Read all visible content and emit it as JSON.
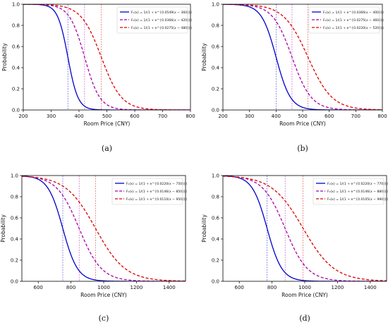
{
  "chart_data": [
    {
      "type": "line",
      "panel_label": "(a)",
      "xlabel": "Room Price (CNY)",
      "ylabel": "Probability",
      "xlim": [
        200,
        800
      ],
      "ylim": [
        0,
        1.0
      ],
      "xticks": [
        200,
        300,
        400,
        500,
        600,
        700,
        800
      ],
      "yticks": [
        0.0,
        0.2,
        0.4,
        0.6,
        0.8,
        1.0
      ],
      "grid": false,
      "legend_position": "top-right",
      "series": [
        {
          "name": "F₁(x) = 1/(1 + e^{0.0549(x − 360)})",
          "k": 0.0549,
          "x0": 360,
          "color": "#0000cc",
          "dash": "solid"
        },
        {
          "name": "F₂(x) = 1/(1 + e^{0.0366(x − 420)})",
          "k": 0.0366,
          "x0": 420,
          "color": "#aa00aa",
          "dash": "dashed"
        },
        {
          "name": "F₃(x) = 1/(1 + e^{0.0275(x − 480)})",
          "k": 0.0275,
          "x0": 480,
          "color": "#dd0000",
          "dash": "dashed"
        }
      ]
    },
    {
      "type": "line",
      "panel_label": "(b)",
      "xlabel": "Room Price (CNY)",
      "ylabel": "Probability",
      "xlim": [
        200,
        800
      ],
      "ylim": [
        0,
        1.0
      ],
      "xticks": [
        200,
        300,
        400,
        500,
        600,
        700,
        800
      ],
      "yticks": [
        0.0,
        0.2,
        0.4,
        0.6,
        0.8,
        1.0
      ],
      "grid": false,
      "legend_position": "top-right",
      "series": [
        {
          "name": "F₁(x) = 1/(1 + e^{0.0366(x − 400)})",
          "k": 0.0366,
          "x0": 400,
          "color": "#0000cc",
          "dash": "solid"
        },
        {
          "name": "F₂(x) = 1/(1 + e^{0.0275(x − 460)})",
          "k": 0.0275,
          "x0": 460,
          "color": "#aa00aa",
          "dash": "dashed"
        },
        {
          "name": "F₃(x) = 1/(1 + e^{0.0220(x − 520)})",
          "k": 0.022,
          "x0": 520,
          "color": "#dd0000",
          "dash": "dashed"
        }
      ]
    },
    {
      "type": "line",
      "panel_label": "(c)",
      "xlabel": "Room Price (CNY)",
      "ylabel": "Probability",
      "xlim": [
        500,
        1500
      ],
      "ylim": [
        0,
        1.0
      ],
      "xticks": [
        600,
        800,
        1000,
        1200,
        1400
      ],
      "yticks": [
        0.0,
        0.2,
        0.4,
        0.6,
        0.8,
        1.0
      ],
      "grid": false,
      "legend_position": "top-right",
      "series": [
        {
          "name": "F₁(x) = 1/(1 + e^{0.0220(x − 750)})",
          "k": 0.022,
          "x0": 750,
          "color": "#0000cc",
          "dash": "solid"
        },
        {
          "name": "F₂(x) = 1/(1 + e^{0.0146(x − 850)})",
          "k": 0.0146,
          "x0": 850,
          "color": "#aa00aa",
          "dash": "dashed"
        },
        {
          "name": "F₃(x) = 1/(1 + e^{0.0110(x − 950)})",
          "k": 0.011,
          "x0": 950,
          "color": "#dd0000",
          "dash": "dashed"
        }
      ]
    },
    {
      "type": "line",
      "panel_label": "(d)",
      "xlabel": "Room Price (CNY)",
      "ylabel": "Probability",
      "xlim": [
        500,
        1500
      ],
      "ylim": [
        0,
        1.0
      ],
      "xticks": [
        600,
        800,
        1000,
        1200,
        1400
      ],
      "yticks": [
        0.0,
        0.2,
        0.4,
        0.6,
        0.8,
        1.0
      ],
      "grid": false,
      "legend_position": "top-right",
      "series": [
        {
          "name": "F₁(x) = 1/(1 + e^{0.0220(x − 770)})",
          "k": 0.022,
          "x0": 770,
          "color": "#0000cc",
          "dash": "solid"
        },
        {
          "name": "F₂(x) = 1/(1 + e^{0.0146(x − 880)})",
          "k": 0.0146,
          "x0": 880,
          "color": "#aa00aa",
          "dash": "dashed"
        },
        {
          "name": "F₃(x) = 1/(1 + e^{0.0105(x − 990)})",
          "k": 0.0105,
          "x0": 990,
          "color": "#dd0000",
          "dash": "dashed"
        }
      ]
    }
  ]
}
